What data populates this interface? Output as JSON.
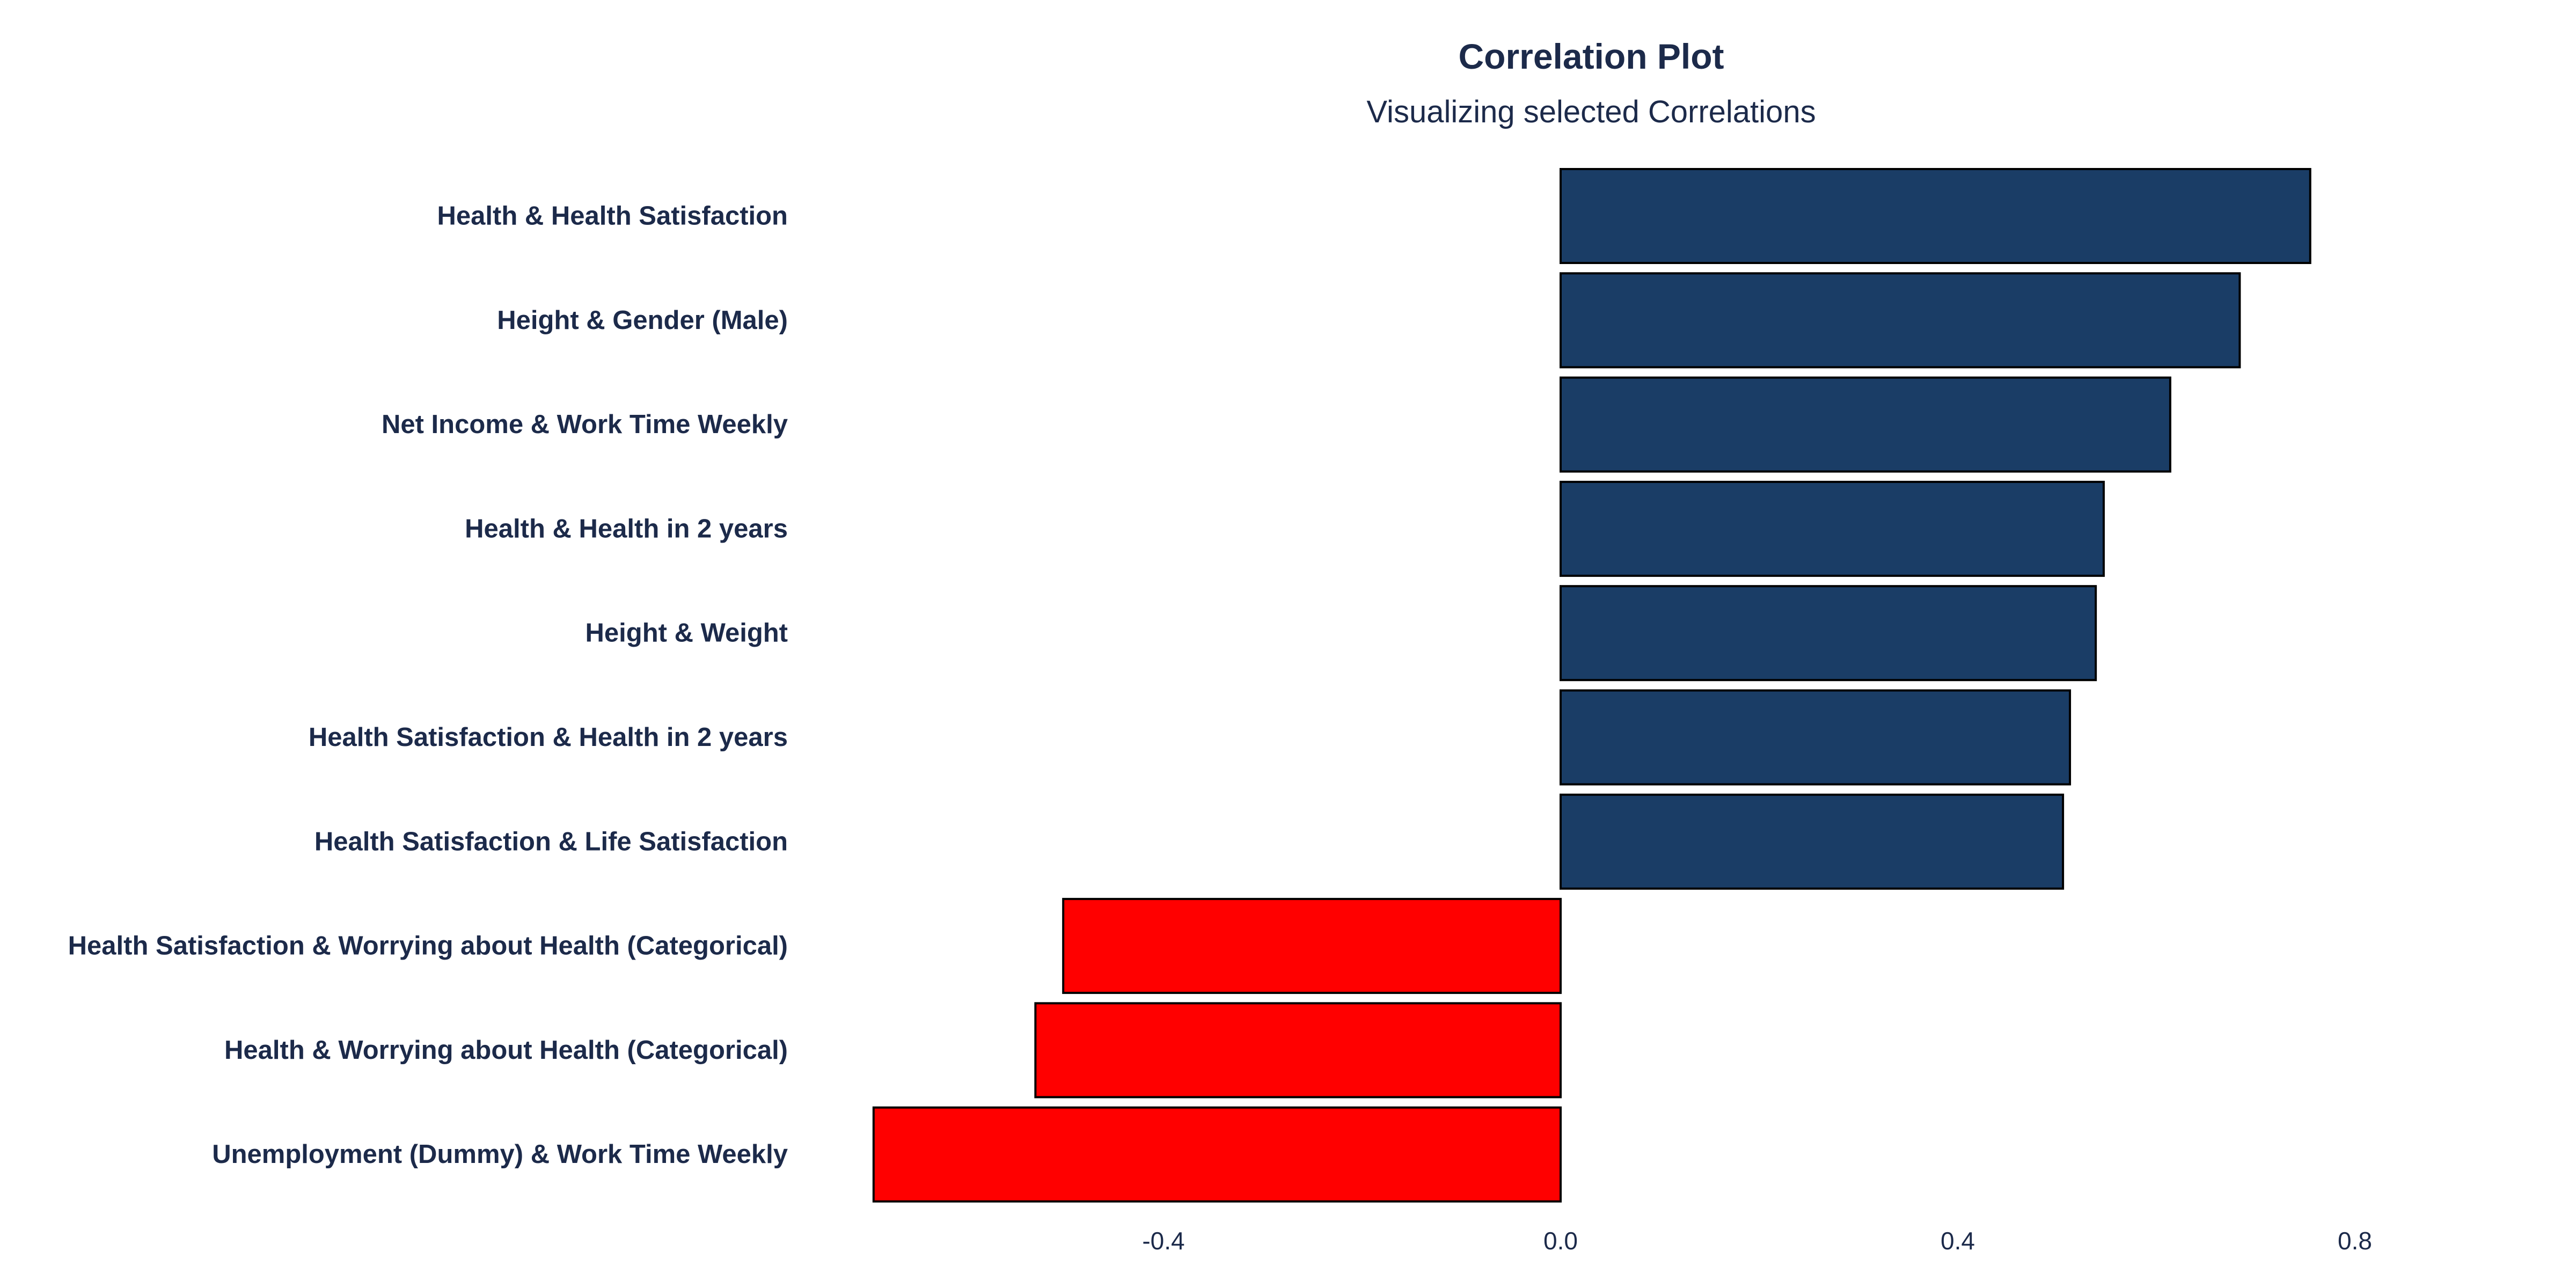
{
  "colors": {
    "positive": "#1a3d66",
    "negative": "#ff0000",
    "bar_outline": "#000000",
    "text": "#1c2a4a"
  },
  "chart_data": {
    "type": "bar",
    "orientation": "horizontal",
    "title": "Correlation Plot",
    "subtitle": "Visualizing selected Correlations",
    "xlabel": "",
    "ylabel": "",
    "xlim": [
      -0.7,
      1.0
    ],
    "grid": false,
    "legend": "none",
    "xticks": [
      -0.4,
      0.0,
      0.4,
      0.8
    ],
    "xtick_labels": [
      "-0.4",
      "0.0",
      "0.4",
      "0.8"
    ],
    "categories": [
      "Health & Health Satisfaction",
      "Height & Gender (Male)",
      "Net Income & Work Time Weekly",
      "Health & Health in 2 years",
      "Height & Weight",
      "Health Satisfaction & Health in 2 years",
      "Health Satisfaction & Life Satisfaction",
      "Health Satisfaction & Worrying about Health (Categorical)",
      "Health & Worrying about Health (Categorical)",
      "Unemployment (Dummy) & Work Time Weekly"
    ],
    "values": [
      0.755,
      0.684,
      0.614,
      0.547,
      0.539,
      0.513,
      0.506,
      -0.501,
      -0.529,
      -0.692
    ]
  }
}
